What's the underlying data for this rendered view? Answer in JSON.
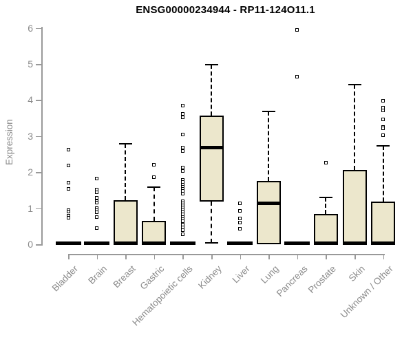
{
  "title": "ENSG00000234944 - RP11-124O11.1",
  "colors": {
    "box_fill": "#ECE7CC",
    "box_stroke": "#000000",
    "axis_line": "#999999",
    "axis_text": "#8A8A8A"
  },
  "chart_data": {
    "type": "boxplot",
    "title": "ENSG00000234944 - RP11-124O11.1",
    "xlabel": "",
    "ylabel": "Expression",
    "ylim": [
      0,
      6
    ],
    "yticks": [
      0,
      1,
      2,
      3,
      4,
      5,
      6
    ],
    "grid": false,
    "legend": "none",
    "categories": [
      "Bladder",
      "Brain",
      "Breast",
      "Gastric",
      "Hematopoietic cells",
      "Kidney",
      "Liver",
      "Lung",
      "Pancreas",
      "Prostate",
      "Skin",
      "Unknown / Other"
    ],
    "boxes": [
      {
        "category": "Bladder",
        "whisker_low": 0,
        "q1": 0,
        "median": 0.02,
        "q3": 0.04,
        "whisker_high": 0.04,
        "collapsed": true,
        "outliers": [
          2.63,
          2.18,
          1.7,
          1.53,
          0.95,
          0.9,
          0.8,
          0.73
        ]
      },
      {
        "category": "Brain",
        "whisker_low": 0,
        "q1": 0,
        "median": 0.02,
        "q3": 0.04,
        "whisker_high": 0.04,
        "collapsed": true,
        "outliers": [
          1.83,
          1.51,
          1.44,
          1.28,
          1.2,
          1.15,
          1.01,
          0.95,
          0.88,
          0.76,
          0.44
        ]
      },
      {
        "category": "Breast",
        "whisker_low": 0,
        "q1": 0,
        "median": 0.03,
        "q3": 1.22,
        "whisker_high": 2.79,
        "collapsed": false,
        "outliers": []
      },
      {
        "category": "Gastric",
        "whisker_low": 0,
        "q1": 0,
        "median": 0.03,
        "q3": 0.65,
        "whisker_high": 1.58,
        "collapsed": false,
        "outliers": [
          2.21,
          1.87
        ]
      },
      {
        "category": "Hematopoietic cells",
        "whisker_low": 0,
        "q1": 0,
        "median": 0.02,
        "q3": 0.04,
        "whisker_high": 0.04,
        "collapsed": true,
        "outliers": [
          3.85,
          3.62,
          3.52,
          3.05,
          2.68,
          2.58,
          2.12,
          2.03,
          1.78,
          1.72,
          1.66,
          1.6,
          1.54,
          1.47,
          1.4,
          1.2,
          1.14,
          1.08,
          1.02,
          0.96,
          0.9,
          0.83,
          0.76,
          0.7,
          0.63,
          0.55,
          0.47,
          0.4,
          0.28
        ]
      },
      {
        "category": "Kidney",
        "whisker_low": 0.03,
        "q1": 1.18,
        "median": 2.69,
        "q3": 3.57,
        "whisker_high": 4.98,
        "collapsed": false,
        "outliers": []
      },
      {
        "category": "Liver",
        "whisker_low": 0,
        "q1": 0,
        "median": 0.02,
        "q3": 0.04,
        "whisker_high": 0.04,
        "collapsed": true,
        "outliers": [
          1.13,
          0.92,
          0.71,
          0.61,
          0.42
        ]
      },
      {
        "category": "Lung",
        "whisker_low": 0,
        "q1": 0,
        "median": 1.13,
        "q3": 1.76,
        "whisker_high": 3.68,
        "collapsed": false,
        "outliers": []
      },
      {
        "category": "Pancreas",
        "whisker_low": 0,
        "q1": 0,
        "median": 0.02,
        "q3": 0.04,
        "whisker_high": 0.04,
        "collapsed": true,
        "outliers": [
          5.95,
          4.64
        ]
      },
      {
        "category": "Prostate",
        "whisker_low": 0,
        "q1": 0,
        "median": 0.03,
        "q3": 0.84,
        "whisker_high": 1.3,
        "collapsed": false,
        "outliers": [
          2.27
        ]
      },
      {
        "category": "Skin",
        "whisker_low": 0,
        "q1": 0,
        "median": 0.03,
        "q3": 2.06,
        "whisker_high": 4.43,
        "collapsed": false,
        "outliers": []
      },
      {
        "category": "Unknown / Other",
        "whisker_low": 0,
        "q1": 0,
        "median": 0.03,
        "q3": 1.18,
        "whisker_high": 2.73,
        "collapsed": false,
        "outliers": [
          3.97,
          3.78,
          3.72,
          3.47,
          3.26,
          3.22,
          3.02
        ]
      }
    ]
  }
}
